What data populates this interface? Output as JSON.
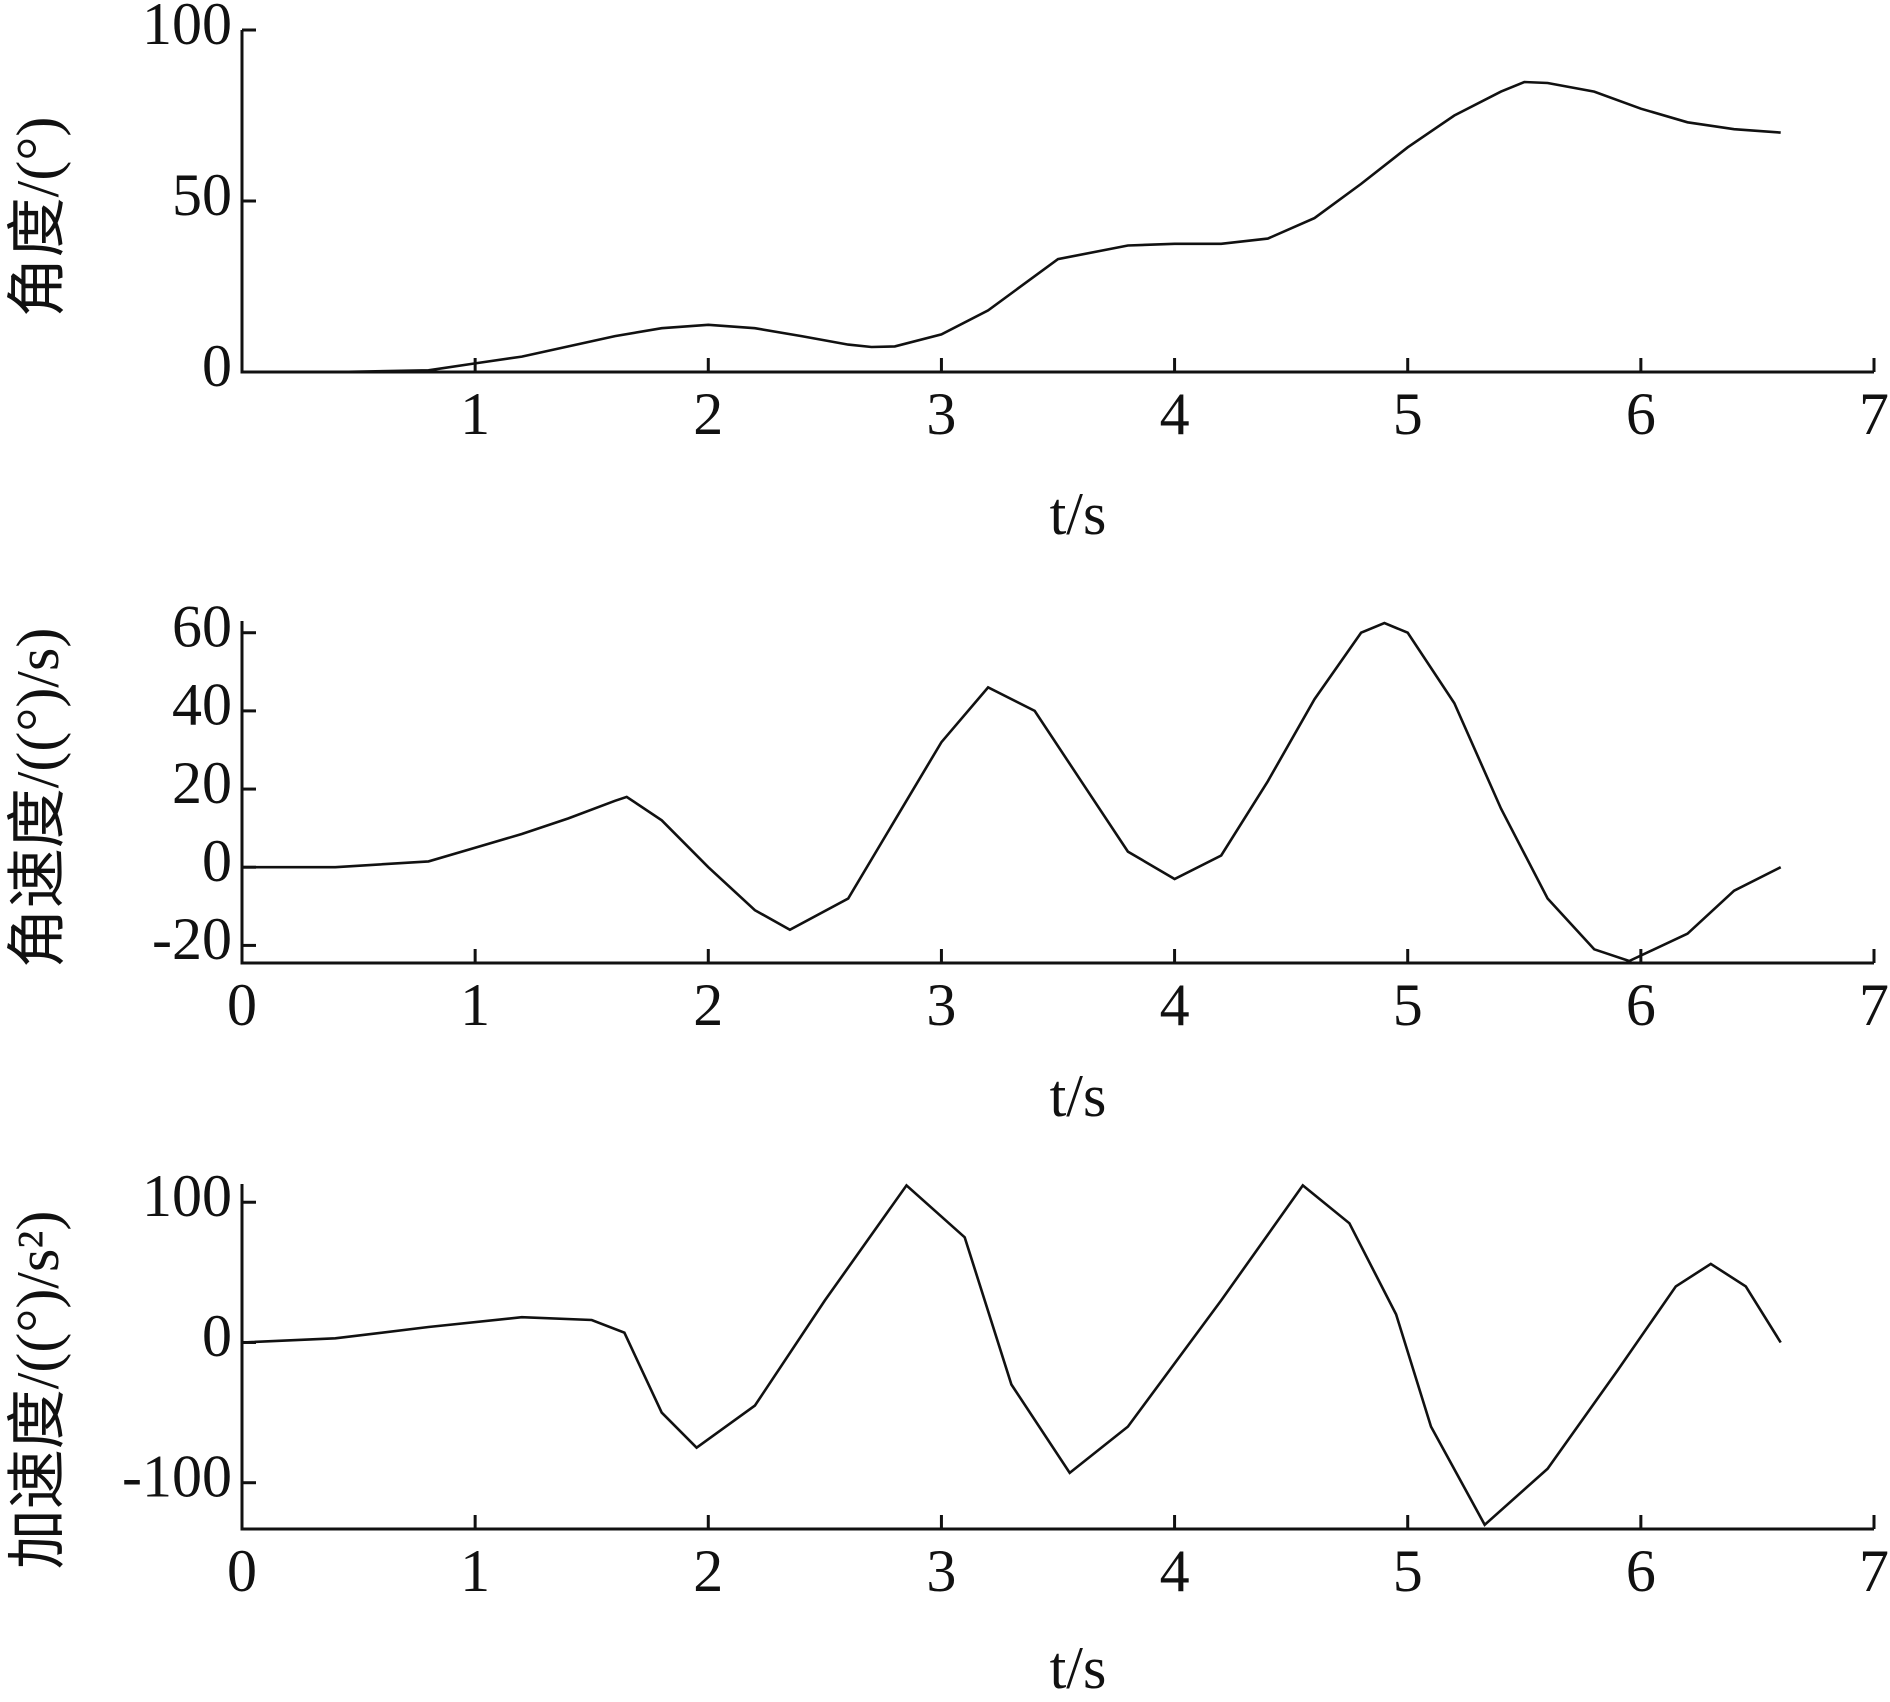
{
  "chart_data": [
    {
      "type": "line",
      "xlabel": "t/s",
      "ylabel": "角度/(°)",
      "x": [
        0,
        0.4,
        0.8,
        1.0,
        1.2,
        1.4,
        1.6,
        1.8,
        2.0,
        2.2,
        2.4,
        2.6,
        2.7,
        2.8,
        3.0,
        3.2,
        3.5,
        3.8,
        4.0,
        4.2,
        4.4,
        4.6,
        4.8,
        5.0,
        5.2,
        5.4,
        5.5,
        5.6,
        5.8,
        6.0,
        6.2,
        6.4,
        6.6
      ],
      "series": [
        {
          "color": "#111111",
          "values": [
            0,
            0,
            0.5,
            2.5,
            4.5,
            7.5,
            10.5,
            12.8,
            13.8,
            12.8,
            10.5,
            8,
            7.3,
            7.5,
            11,
            18,
            33,
            37,
            37.5,
            37.5,
            39,
            45,
            55,
            65.7,
            75,
            82,
            84.8,
            84.5,
            82,
            77,
            73,
            71,
            70
          ]
        }
      ],
      "xlim": [
        0,
        7
      ],
      "xticks": [
        1,
        2,
        3,
        4,
        5,
        6,
        7
      ],
      "ylim": [
        0,
        100
      ],
      "yticks": [
        0,
        50,
        100
      ]
    },
    {
      "type": "line",
      "xlabel": "t/s",
      "ylabel": "角速度/((°)/s)",
      "x": [
        0,
        0.4,
        0.8,
        1.0,
        1.2,
        1.4,
        1.6,
        1.65,
        1.8,
        2.0,
        2.2,
        2.35,
        2.6,
        2.8,
        3.0,
        3.2,
        3.4,
        3.6,
        3.8,
        4.0,
        4.2,
        4.4,
        4.6,
        4.8,
        4.9,
        5.0,
        5.2,
        5.4,
        5.6,
        5.8,
        5.95,
        6.2,
        6.4,
        6.6
      ],
      "series": [
        {
          "color": "#111111",
          "values": [
            0,
            0,
            1.5,
            5,
            8.5,
            12.5,
            17,
            18,
            12,
            0,
            -11,
            -16,
            -8,
            12,
            32,
            46,
            40,
            22,
            4,
            -3,
            3,
            22,
            43,
            60,
            62.5,
            60,
            42,
            15,
            -8,
            -21,
            -24,
            -17,
            -6,
            0
          ]
        }
      ],
      "xlim": [
        0,
        7
      ],
      "xticks": [
        0,
        1,
        2,
        3,
        4,
        5,
        6,
        7
      ],
      "ylim": [
        -24.5,
        63
      ],
      "yticks": [
        -20,
        0,
        20,
        40,
        60
      ]
    },
    {
      "type": "line",
      "xlabel": "t/s",
      "ylabel": "加速度/((°)/s²)",
      "x": [
        0,
        0.4,
        0.8,
        1.2,
        1.5,
        1.64,
        1.8,
        1.95,
        2.2,
        2.5,
        2.85,
        3.1,
        3.3,
        3.55,
        3.8,
        4.2,
        4.55,
        4.75,
        4.95,
        5.1,
        5.33,
        5.6,
        5.9,
        6.15,
        6.3,
        6.45,
        6.6
      ],
      "series": [
        {
          "color": "#111111",
          "values": [
            0,
            3,
            11,
            18,
            16,
            7,
            -50,
            -75,
            -45,
            30,
            112,
            75,
            -30,
            -93,
            -60,
            30,
            112,
            85,
            20,
            -60,
            -130,
            -90,
            -20,
            40,
            56,
            40,
            0
          ]
        }
      ],
      "xlim": [
        0,
        7
      ],
      "xticks": [
        0,
        1,
        2,
        3,
        4,
        5,
        6,
        7
      ],
      "ylim": [
        -133,
        113
      ],
      "yticks": [
        -100,
        0,
        100
      ]
    }
  ]
}
